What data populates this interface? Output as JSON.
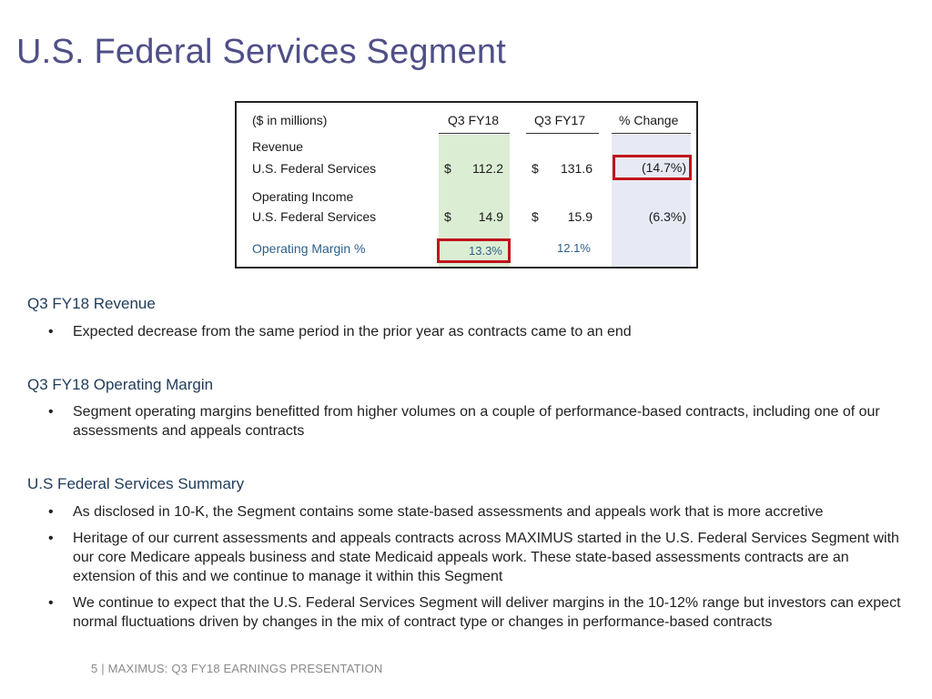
{
  "title": "U.S. Federal Services Segment",
  "table": {
    "header": {
      "label": "($ in millions)",
      "col1": "Q3 FY18",
      "col2": "Q3 FY17",
      "col3": "% Change"
    },
    "revenue_heading": "Revenue",
    "revenue_row": {
      "label": "U.S. Federal Services",
      "cur1": "$",
      "val1": "112.2",
      "cur2": "$",
      "val2": "131.6",
      "change": "(14.7%)"
    },
    "income_heading": "Operating Income",
    "income_row": {
      "label": "U.S. Federal Services",
      "cur1": "$",
      "val1": "14.9",
      "cur2": "$",
      "val2": "15.9",
      "change": "(6.3%)"
    },
    "margin_row": {
      "label": "Operating Margin %",
      "val1": "13.3%",
      "val2": "12.1%"
    }
  },
  "sections": [
    {
      "heading": "Q3 FY18 Revenue",
      "bullets": [
        "Expected decrease from the same period in the prior year as contracts came to an end"
      ]
    },
    {
      "heading": "Q3 FY18 Operating Margin",
      "bullets": [
        "Segment operating margins benefitted from higher volumes on a couple of performance-based contracts, including one of our assessments and appeals contracts"
      ]
    },
    {
      "heading": "U.S Federal Services Summary",
      "bullets": [
        "As disclosed in 10-K, the Segment contains some state-based assessments and appeals work that is more accretive",
        "Heritage of our current assessments and appeals contracts across MAXIMUS started in the U.S. Federal Services Segment with our core Medicare appeals business and state Medicaid appeals work. These state-based assessments contracts are an extension of this and we continue to manage it within this Segment",
        "We continue to expect that the U.S. Federal Services Segment will deliver margins in the 10-12% range but investors can expect normal fluctuations driven by changes in the mix of contract type or changes in performance-based contracts"
      ]
    }
  ],
  "bullet_char": "•",
  "footer": "5 | MAXIMUS: Q3 FY18 EARNINGS PRESENTATION"
}
